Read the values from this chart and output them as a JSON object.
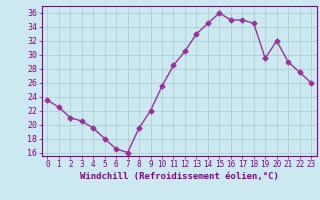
{
  "x": [
    0,
    1,
    2,
    3,
    4,
    5,
    6,
    7,
    8,
    9,
    10,
    11,
    12,
    13,
    14,
    15,
    16,
    17,
    18,
    19,
    20,
    21,
    22,
    23
  ],
  "y": [
    23.5,
    22.5,
    21.0,
    20.5,
    19.5,
    18.0,
    16.5,
    16.0,
    19.5,
    22.0,
    25.5,
    28.5,
    30.5,
    33.0,
    34.5,
    36.0,
    35.0,
    35.0,
    34.5,
    29.5,
    32.0,
    29.0,
    27.5,
    26.0
  ],
  "line_color": "#993399",
  "marker": "D",
  "marker_size": 2.5,
  "xlabel": "Windchill (Refroidissement éolien,°C)",
  "ylabel": "",
  "ylim": [
    15.5,
    37
  ],
  "xlim": [
    -0.5,
    23.5
  ],
  "yticks": [
    16,
    18,
    20,
    22,
    24,
    26,
    28,
    30,
    32,
    34,
    36
  ],
  "xticks": [
    0,
    1,
    2,
    3,
    4,
    5,
    6,
    7,
    8,
    9,
    10,
    11,
    12,
    13,
    14,
    15,
    16,
    17,
    18,
    19,
    20,
    21,
    22,
    23
  ],
  "background_color": "#cce8f0",
  "grid_color": "#aacccc",
  "tick_color": "#880088",
  "label_color": "#880088",
  "spine_color": "#880088",
  "font_family": "monospace",
  "linewidth": 1.0
}
